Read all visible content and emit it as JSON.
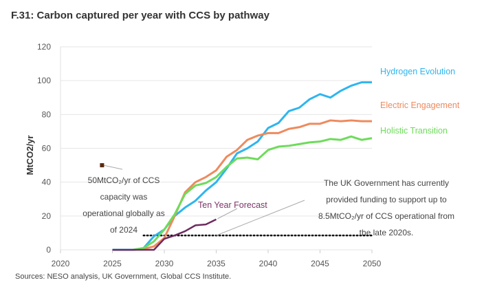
{
  "chart_data": {
    "type": "line",
    "title": "F.31: Carbon captured per year with CCS by pathway",
    "xlabel": "",
    "ylabel": "MtCO2/yr",
    "xlim": [
      2020,
      2050
    ],
    "ylim": [
      0,
      120
    ],
    "x_ticks": [
      "2020",
      "2025",
      "2030",
      "2035",
      "2040",
      "2045",
      "2050"
    ],
    "y_ticks": [
      "0",
      "20",
      "40",
      "60",
      "80",
      "100",
      "120"
    ],
    "grid": "horizontal",
    "legend": "right (inline labels)",
    "series": [
      {
        "name": "Hydrogen Evolution",
        "color": "#2eb5ef",
        "x": [
          2025,
          2026,
          2027,
          2028,
          2029,
          2030,
          2031,
          2032,
          2033,
          2034,
          2035,
          2036,
          2037,
          2038,
          2039,
          2040,
          2041,
          2042,
          2043,
          2044,
          2045,
          2046,
          2047,
          2048,
          2049,
          2050
        ],
        "values": [
          0,
          0,
          0,
          1,
          8,
          12,
          20,
          25,
          29,
          35,
          40,
          48,
          57,
          60,
          64,
          72,
          75,
          82,
          84,
          89,
          92,
          90,
          94,
          97,
          99,
          99
        ]
      },
      {
        "name": "Electric Engagement",
        "color": "#ee8a5e",
        "x": [
          2027,
          2028,
          2029,
          2030,
          2031,
          2032,
          2033,
          2034,
          2035,
          2036,
          2037,
          2038,
          2039,
          2040,
          2041,
          2042,
          2043,
          2044,
          2045,
          2046,
          2047,
          2048,
          2049,
          2050
        ],
        "values": [
          0,
          0.5,
          2,
          7,
          20,
          34,
          40,
          43,
          47,
          55,
          59,
          65,
          67.5,
          69,
          69,
          71.5,
          72.5,
          74.5,
          74.5,
          76.5,
          76,
          76.5,
          76,
          76
        ]
      },
      {
        "name": "Holistic Transition",
        "color": "#6ddc5a",
        "x": [
          2027,
          2028,
          2029,
          2030,
          2031,
          2032,
          2033,
          2034,
          2035,
          2036,
          2037,
          2038,
          2039,
          2040,
          2041,
          2042,
          2043,
          2044,
          2045,
          2046,
          2047,
          2048,
          2049,
          2050
        ],
        "values": [
          0,
          1,
          5,
          12,
          21,
          33,
          38,
          39.5,
          43,
          49,
          54,
          54.5,
          53.5,
          59,
          61,
          61.5,
          62.5,
          63.5,
          64,
          65.5,
          65,
          67,
          65,
          66
        ]
      },
      {
        "name": "Ten Year Forecast",
        "color": "#6e2a5e",
        "x": [
          2025,
          2026,
          2027,
          2028,
          2029,
          2030,
          2031,
          2032,
          2033,
          2034,
          2035
        ],
        "values": [
          0,
          0,
          0,
          0,
          0,
          6.5,
          8.5,
          11,
          14.5,
          15,
          18
        ]
      }
    ],
    "reference_line": {
      "value": 8.5,
      "x_range": [
        2028,
        2050
      ],
      "style": "dotted"
    },
    "marker_point": {
      "x": 2024,
      "y": 50
    },
    "annotations": {
      "global": [
        "50MtCO₂/yr of CCS",
        "capacity was",
        "operational globally as",
        "of 2024"
      ],
      "uk": [
        "The UK Government has currently",
        "provided funding to support up to",
        "8.5MtCO₂/yr of CCS operational from",
        "the late 2020s."
      ]
    },
    "source": "Sources: NESO analysis, UK Government, Global CCS Institute."
  }
}
